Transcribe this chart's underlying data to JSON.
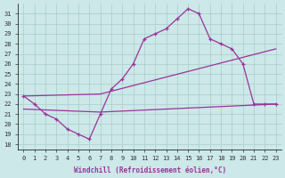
{
  "xlabel": "Windchill (Refroidissement éolien,°C)",
  "bg_color": "#cce8e8",
  "grid_color": "#aacccc",
  "line_color": "#993399",
  "x_ticks": [
    0,
    1,
    2,
    3,
    4,
    5,
    6,
    7,
    8,
    9,
    10,
    11,
    12,
    13,
    14,
    15,
    16,
    17,
    18,
    19,
    20,
    21,
    22,
    23
  ],
  "y_ticks": [
    18,
    19,
    20,
    21,
    22,
    23,
    24,
    25,
    26,
    27,
    28,
    29,
    30,
    31
  ],
  "ylim": [
    17.5,
    32.0
  ],
  "xlim": [
    -0.5,
    23.5
  ],
  "curve_x": [
    0,
    1,
    2,
    3,
    4,
    5,
    6,
    7,
    8,
    9,
    10,
    11,
    12,
    13,
    14,
    15,
    16,
    17,
    18,
    19,
    20,
    21,
    22,
    23
  ],
  "curve_y": [
    22.8,
    22.0,
    21.0,
    20.5,
    19.5,
    19.0,
    18.5,
    21.0,
    23.5,
    24.5,
    26.0,
    28.5,
    29.0,
    29.5,
    30.5,
    31.5,
    31.0,
    28.5,
    28.0,
    27.5,
    26.0,
    22.0,
    22.0,
    22.0
  ],
  "trend1_x": [
    0,
    7,
    23
  ],
  "trend1_y": [
    22.8,
    23.0,
    27.5
  ],
  "trend2_x": [
    0,
    7,
    23
  ],
  "trend2_y": [
    21.5,
    21.2,
    22.0
  ]
}
